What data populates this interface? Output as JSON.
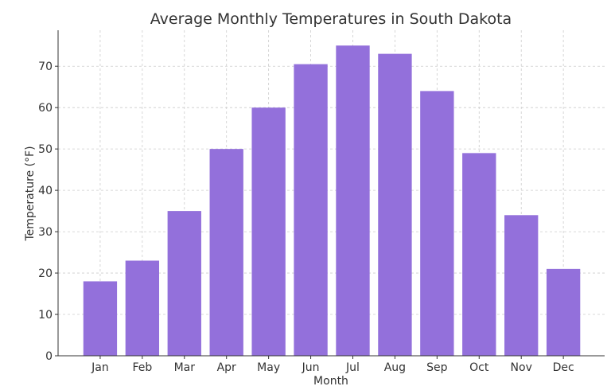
{
  "chart_data": {
    "type": "bar",
    "title": "Average Monthly Temperatures in South Dakota",
    "xlabel": "Month",
    "ylabel": "Temperature (°F)",
    "categories": [
      "Jan",
      "Feb",
      "Mar",
      "Apr",
      "May",
      "Jun",
      "Jul",
      "Aug",
      "Sep",
      "Oct",
      "Nov",
      "Dec"
    ],
    "values": [
      18,
      23,
      35,
      50,
      60,
      70.5,
      75,
      73,
      64,
      49,
      34,
      21
    ],
    "ylim": [
      0,
      78.7
    ],
    "yticks": [
      0,
      10,
      20,
      30,
      40,
      50,
      60,
      70
    ],
    "grid": true,
    "bar_color": "#9370DB"
  }
}
